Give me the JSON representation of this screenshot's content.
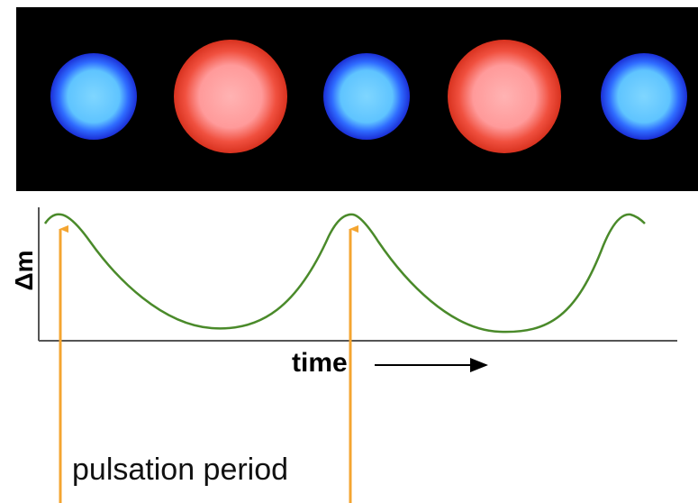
{
  "labels": {
    "y_axis": "Δm",
    "x_axis": "time",
    "annotation": "pulsation period"
  }
}
